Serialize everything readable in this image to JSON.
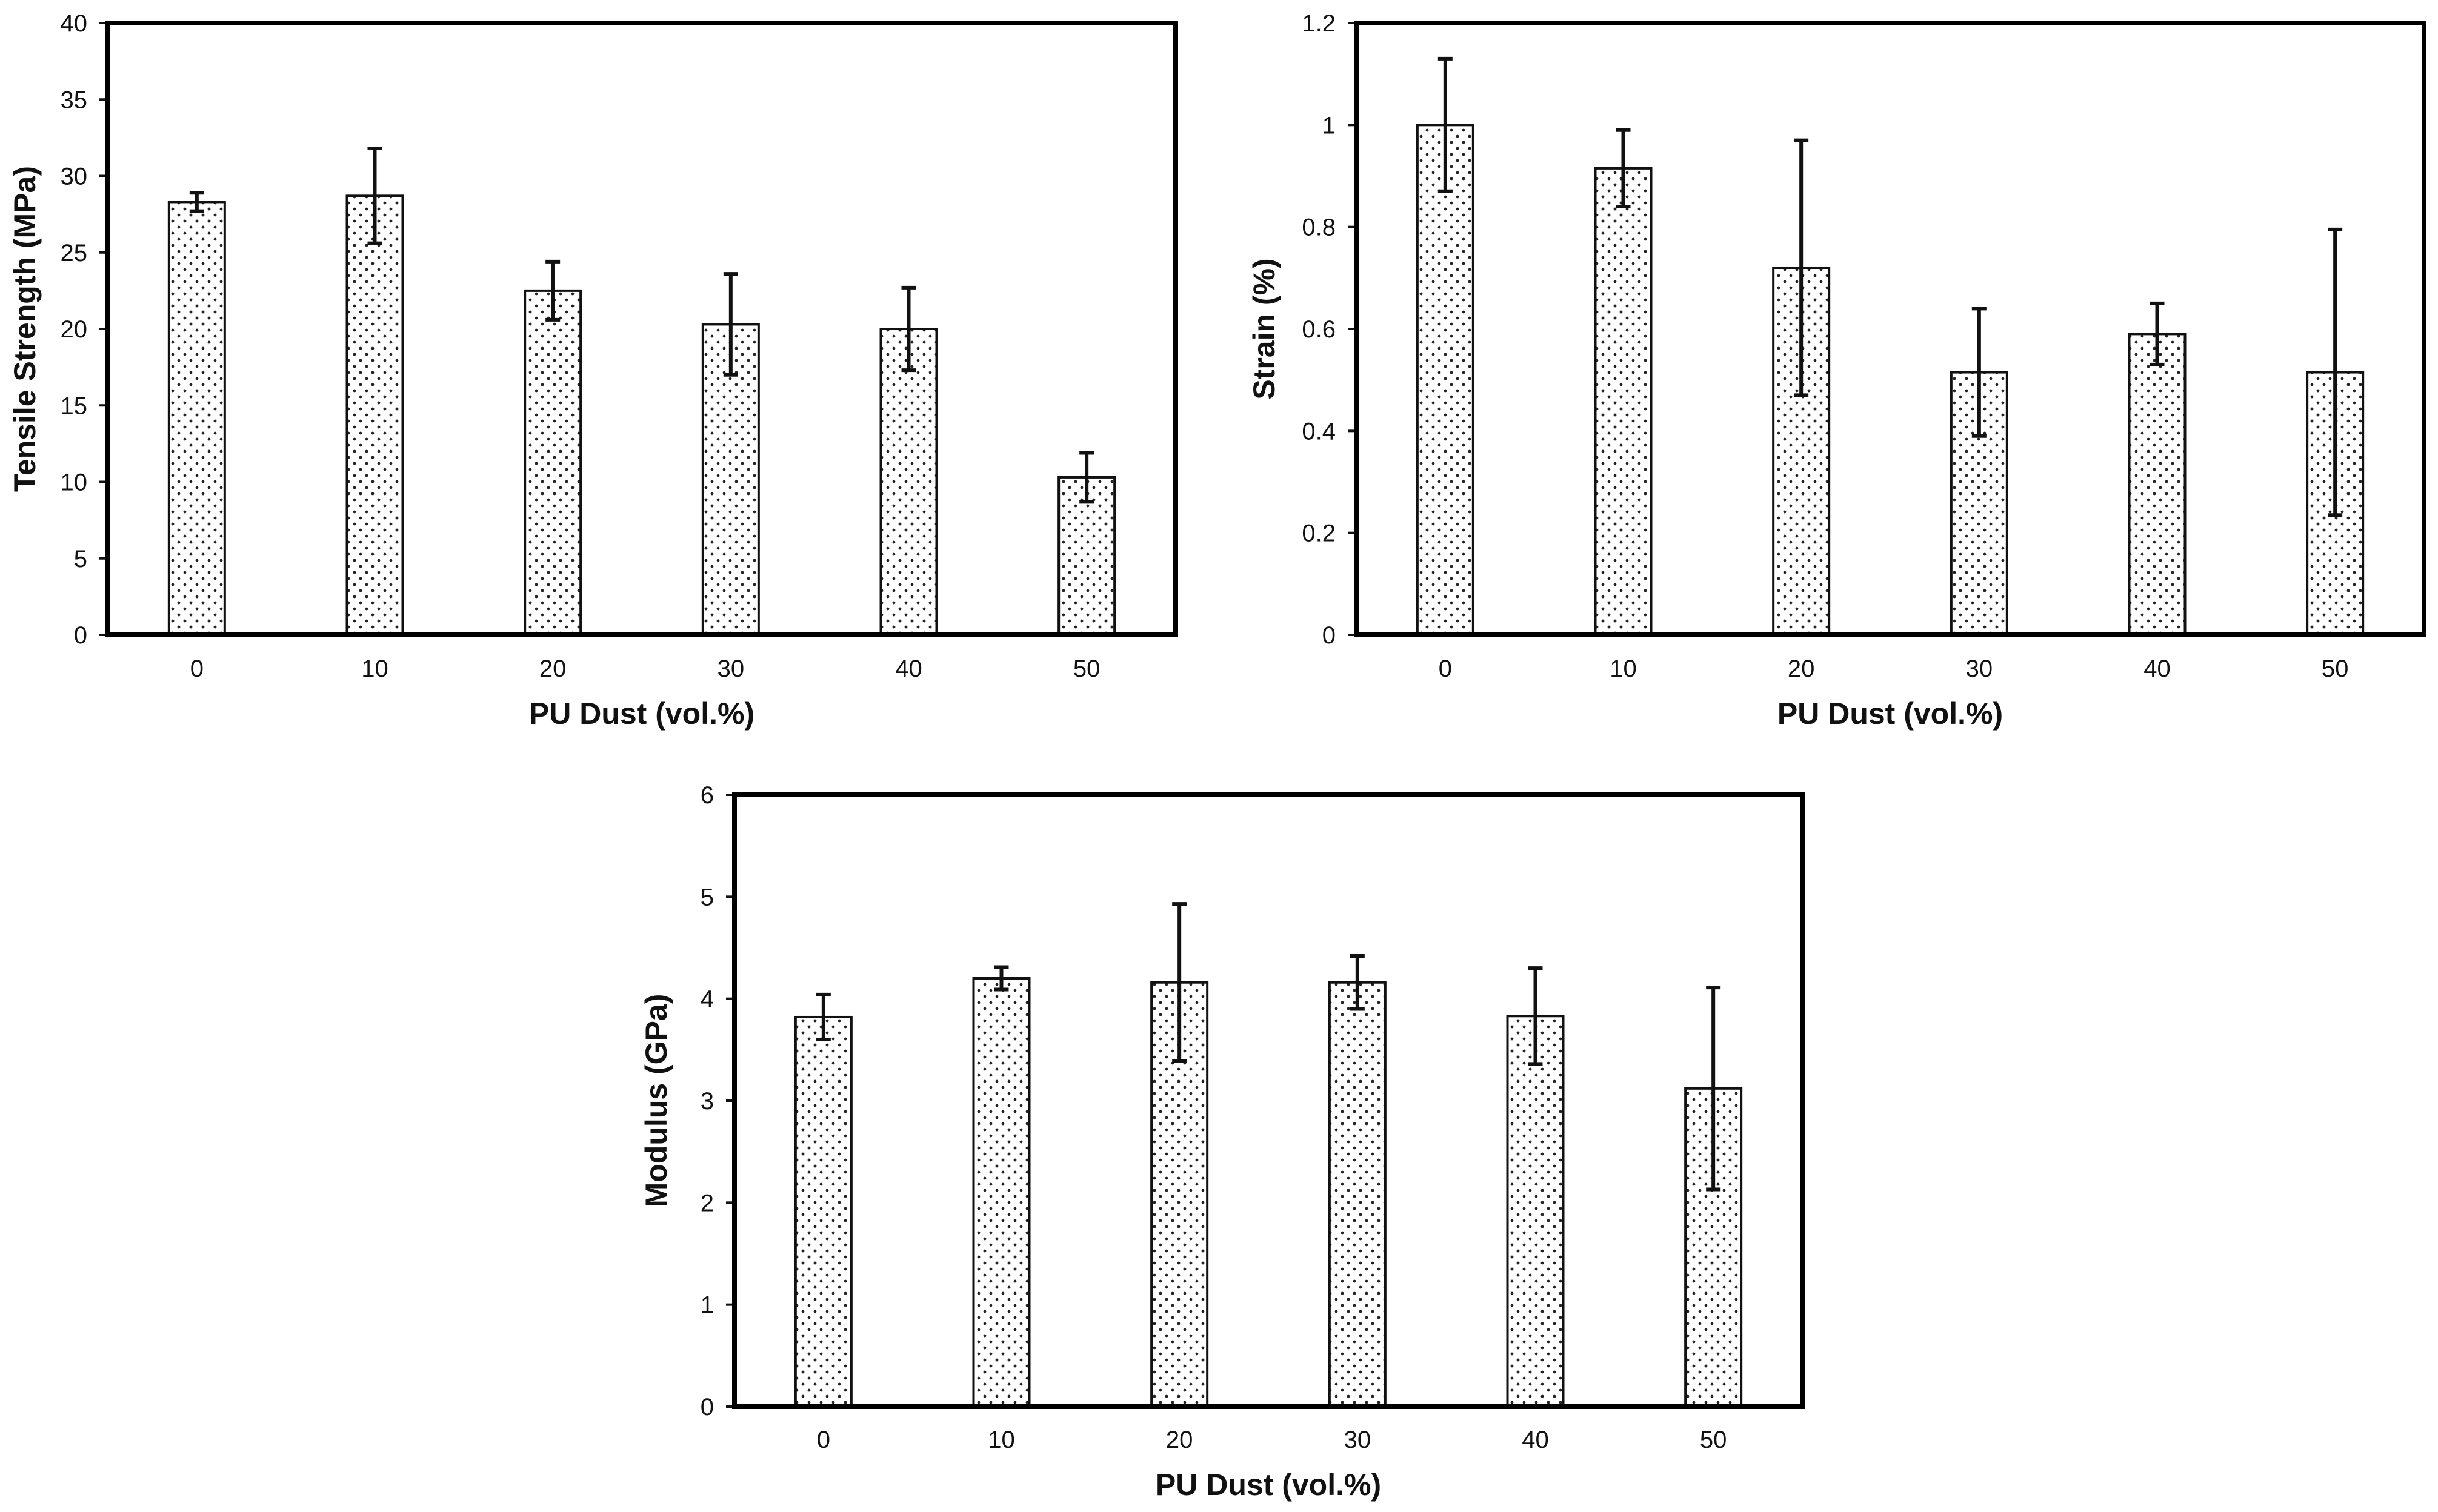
{
  "chart_data": [
    {
      "type": "bar",
      "title": "",
      "xlabel": "PU Dust (vol.%)",
      "ylabel": "Tensile Strength (MPa)",
      "categories": [
        "0",
        "10",
        "20",
        "30",
        "40",
        "50"
      ],
      "values": [
        28.3,
        28.7,
        22.5,
        20.3,
        20.0,
        10.3
      ],
      "errors": [
        0.6,
        3.1,
        1.9,
        3.3,
        2.7,
        1.6
      ],
      "ylim": [
        0,
        40
      ],
      "yticks": [
        "0",
        "5",
        "10",
        "15",
        "20",
        "25",
        "30",
        "35",
        "40"
      ],
      "grid": false,
      "pattern": "dotted"
    },
    {
      "type": "bar",
      "title": "",
      "xlabel": "PU Dust (vol.%)",
      "ylabel": "Strain (%)",
      "categories": [
        "0",
        "10",
        "20",
        "30",
        "40",
        "50"
      ],
      "values": [
        1.0,
        0.915,
        0.72,
        0.515,
        0.59,
        0.515
      ],
      "errors": [
        0.13,
        0.075,
        0.25,
        0.125,
        0.06,
        0.28
      ],
      "ylim": [
        0,
        1.2
      ],
      "yticks": [
        "0",
        "0.2",
        "0.4",
        "0.6",
        "0.8",
        "1",
        "1.2"
      ],
      "grid": false,
      "pattern": "dotted"
    },
    {
      "type": "bar",
      "title": "",
      "xlabel": "PU Dust (vol.%)",
      "ylabel": "Modulus (GPa)",
      "categories": [
        "0",
        "10",
        "20",
        "30",
        "40",
        "50"
      ],
      "values": [
        3.82,
        4.2,
        4.16,
        4.16,
        3.83,
        3.12
      ],
      "errors": [
        0.22,
        0.11,
        0.77,
        0.26,
        0.47,
        0.99
      ],
      "ylim": [
        0,
        6
      ],
      "yticks": [
        "0",
        "1",
        "2",
        "3",
        "4",
        "5",
        "6"
      ],
      "grid": false,
      "pattern": "dotted"
    }
  ]
}
